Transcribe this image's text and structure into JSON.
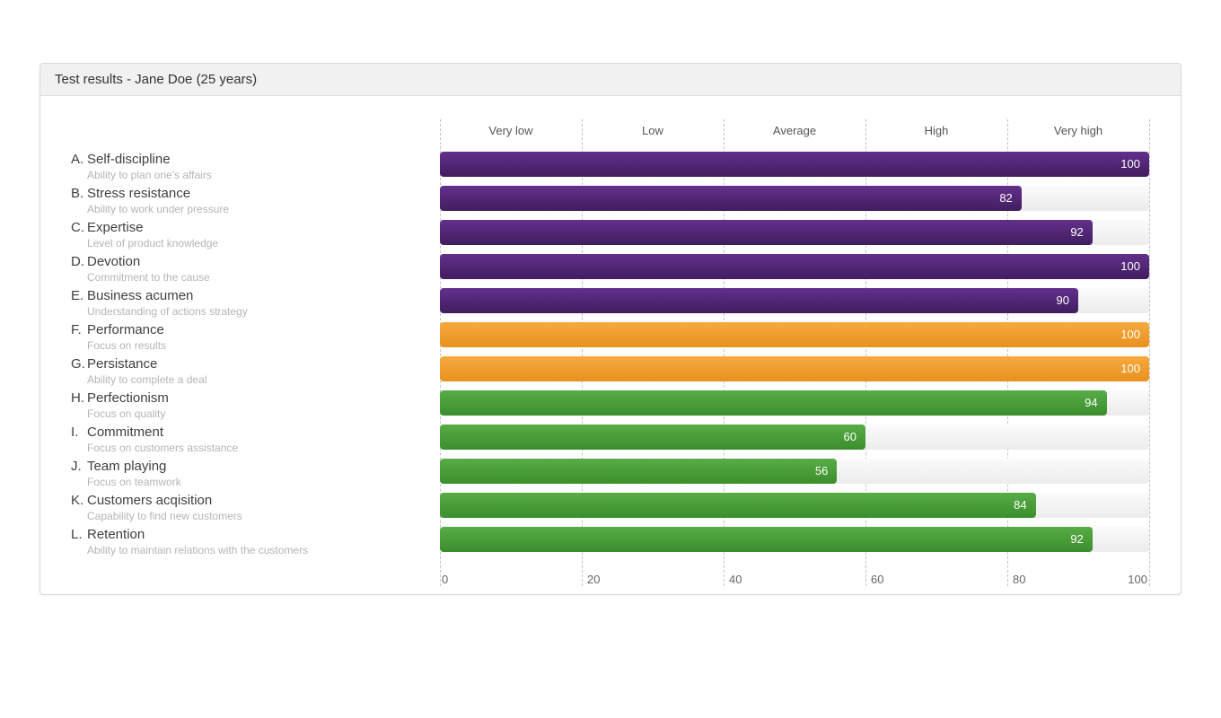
{
  "panel": {
    "title": "Test results - Jane Doe (25 years)"
  },
  "chart_data": {
    "type": "bar",
    "orientation": "horizontal",
    "title": "Test results - Jane Doe (25 years)",
    "xlim": [
      0,
      100
    ],
    "x_ticks": [
      0,
      20,
      40,
      60,
      80,
      100
    ],
    "x_tick_labels": [
      "0",
      "20",
      "40",
      "60",
      "80",
      "100"
    ],
    "band_labels": [
      "Very low",
      "Low",
      "Average",
      "High",
      "Very high"
    ],
    "grid": "vertical-dashed",
    "legend": "none",
    "colors": {
      "purple": "#4f2170",
      "orange": "#f0a030",
      "green": "#4a9e3a",
      "track": "#f0f0f0"
    },
    "rows": [
      {
        "letter": "A.",
        "label": "Self-discipline",
        "sublabel": "Ability to plan one's affairs",
        "value": 100,
        "color": "purple"
      },
      {
        "letter": "B.",
        "label": "Stress resistance",
        "sublabel": "Ability to work under pressure",
        "value": 82,
        "color": "purple"
      },
      {
        "letter": "C.",
        "label": "Expertise",
        "sublabel": "Level of product knowledge",
        "value": 92,
        "color": "purple"
      },
      {
        "letter": "D.",
        "label": "Devotion",
        "sublabel": "Commitment to the cause",
        "value": 100,
        "color": "purple"
      },
      {
        "letter": "E.",
        "label": "Business acumen",
        "sublabel": "Understanding of actions strategy",
        "value": 90,
        "color": "purple"
      },
      {
        "letter": "F.",
        "label": "Performance",
        "sublabel": "Focus on results",
        "value": 100,
        "color": "orange"
      },
      {
        "letter": "G.",
        "label": "Persistance",
        "sublabel": "Ability to complete a deal",
        "value": 100,
        "color": "orange"
      },
      {
        "letter": "H.",
        "label": "Perfectionism",
        "sublabel": "Focus on quality",
        "value": 94,
        "color": "green"
      },
      {
        "letter": "I.",
        "label": "Commitment",
        "sublabel": "Focus on customers assistance",
        "value": 60,
        "color": "green"
      },
      {
        "letter": "J.",
        "label": "Team playing",
        "sublabel": "Focus on teamwork",
        "value": 56,
        "color": "green"
      },
      {
        "letter": "K.",
        "label": "Customers acqisition",
        "sublabel": "Capability to find new customers",
        "value": 84,
        "color": "green"
      },
      {
        "letter": "L.",
        "label": "Retention",
        "sublabel": "Ability to maintain relations with the customers",
        "value": 92,
        "color": "green"
      }
    ]
  }
}
